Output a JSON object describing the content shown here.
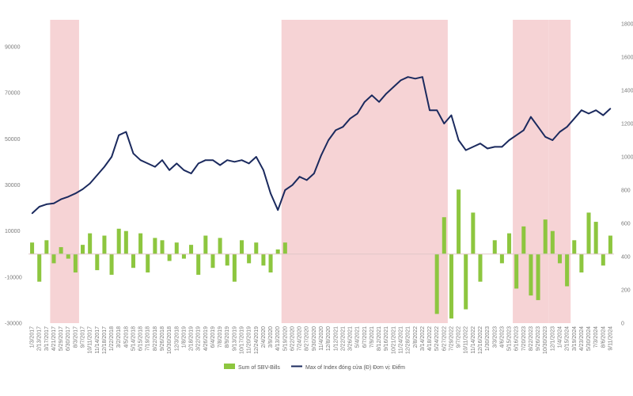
{
  "chart_data": {
    "type": "bar+line",
    "title": "",
    "xlabel": "",
    "left_axis": {
      "ylabel": "",
      "ylim": [
        -30000,
        100000
      ],
      "ticks": [
        "90000",
        "70000",
        "50000",
        "30000",
        "10000",
        "-10000",
        "-30000"
      ]
    },
    "right_axis": {
      "ylabel": "",
      "ylim": [
        0,
        1800
      ],
      "ticks": [
        "1800",
        "1600",
        "1400",
        "1200",
        "1000",
        "800",
        "600",
        "400",
        "200",
        "0"
      ]
    },
    "x_tick_labels": [
      "1/3/2017",
      "2/13/2017",
      "3/17/2017",
      "4/21/2017",
      "5/29/2017",
      "6/30/2017",
      "8/3/2017",
      "9/7/2017",
      "10/11/2017",
      "11/14/2017",
      "12/18/2017",
      "1/22/2018",
      "3/2/2018",
      "4/5/2018",
      "5/14/2018",
      "6/15/2018",
      "7/19/2018",
      "8/22/2018",
      "9/26/2018",
      "10/30/2018",
      "12/3/2018",
      "1/8/2019",
      "2/18/2019",
      "3/22/2019",
      "4/26/2019",
      "6/4/2019",
      "7/8/2019",
      "8/9/2019",
      "9/13/2019",
      "10/17/2019",
      "11/20/2019",
      "12/24/2019",
      "2/4/2020",
      "3/9/2020",
      "4/13/2020",
      "5/19/2020",
      "6/22/2020",
      "7/24/2020",
      "8/27/2020",
      "9/30/2020",
      "11/4/2020",
      "12/8/2020",
      "1/12/2021",
      "2/22/2021",
      "3/26/2021",
      "5/4/2021",
      "6/7/2021",
      "7/9/2021",
      "8/12/2021",
      "9/16/2021",
      "10/21/2021",
      "11/24/2021",
      "12/28/2021",
      "2/8/2022",
      "3/14/2022",
      "4/18/2022",
      "5/24/2022",
      "6/27/2022",
      "7/29/2022",
      "9/7/2022",
      "10/11/2022",
      "11/14/2022",
      "12/16/2022",
      "1/30/2023",
      "3/3/2023",
      "4/6/2023",
      "5/15/2023",
      "6/16/2023",
      "7/20/2023",
      "8/22/2023",
      "9/26/2023",
      "10/30/2023",
      "12/1/2023",
      "1/4/2024",
      "2/15/2024",
      "3/19/2024",
      "4/23/2024",
      "5/30/2024",
      "7/3/2024",
      "8/6/2024",
      "9/11/2024"
    ],
    "shaded_periods": [
      {
        "start": "4/21/2017",
        "end": "8/3/2017"
      },
      {
        "start": "5/19/2020",
        "end": "6/27/2022"
      },
      {
        "start": "6/16/2023",
        "end": "10/30/2023"
      },
      {
        "start": "12/1/2023",
        "end": "2/15/2024"
      }
    ],
    "series": [
      {
        "name": "Sum of SBV-Bills",
        "type": "bar",
        "axis": "left",
        "color": "#8dc63f",
        "x": [
          "1/3/2017",
          "2/13/2017",
          "3/17/2017",
          "4/21/2017",
          "5/29/2017",
          "6/30/2017",
          "8/3/2017",
          "9/7/2017",
          "10/11/2017",
          "11/14/2017",
          "12/18/2017",
          "1/22/2018",
          "3/2/2018",
          "4/5/2018",
          "5/14/2018",
          "6/15/2018",
          "7/19/2018",
          "8/22/2018",
          "9/26/2018",
          "10/30/2018",
          "12/3/2018",
          "1/8/2019",
          "2/18/2019",
          "3/22/2019",
          "4/26/2019",
          "6/4/2019",
          "7/8/2019",
          "8/9/2019",
          "9/13/2019",
          "10/17/2019",
          "11/20/2019",
          "12/24/2019",
          "2/4/2020",
          "3/9/2020",
          "4/13/2020",
          "5/19/2020",
          "6/22/2020",
          "7/24/2020",
          "8/27/2020",
          "9/30/2020",
          "11/4/2020",
          "12/8/2020",
          "1/12/2021",
          "2/22/2021",
          "3/26/2021",
          "5/4/2021",
          "6/7/2021",
          "7/9/2021",
          "8/12/2021",
          "9/16/2021",
          "10/21/2021",
          "11/24/2021",
          "12/28/2021",
          "2/8/2022",
          "3/14/2022",
          "4/18/2022",
          "5/24/2022",
          "6/27/2022",
          "7/29/2022",
          "9/7/2022",
          "10/11/2022",
          "11/14/2022",
          "12/16/2022",
          "1/30/2023",
          "3/3/2023",
          "4/6/2023",
          "5/15/2023",
          "6/16/2023",
          "7/20/2023",
          "8/22/2023",
          "9/26/2023",
          "10/30/2023",
          "12/1/2023",
          "1/4/2024",
          "2/15/2024",
          "3/19/2024",
          "4/23/2024",
          "5/30/2024",
          "7/3/2024",
          "8/6/2024",
          "9/11/2024"
        ],
        "values": [
          5000,
          -12000,
          6000,
          -4000,
          3000,
          -2000,
          -8000,
          4000,
          9000,
          -7000,
          8000,
          -9000,
          11000,
          10000,
          -6000,
          9000,
          -8000,
          7000,
          6000,
          -3000,
          5000,
          -2000,
          4000,
          -9000,
          8000,
          -6000,
          7000,
          -5000,
          -12000,
          6000,
          -4000,
          5000,
          -5000,
          -8000,
          2000,
          5000,
          0,
          0,
          0,
          0,
          0,
          0,
          0,
          0,
          0,
          0,
          0,
          0,
          0,
          0,
          0,
          0,
          0,
          0,
          0,
          0,
          -26000,
          16000,
          -28000,
          28000,
          -24000,
          18000,
          -12000,
          0,
          6000,
          -4000,
          9000,
          -15000,
          12000,
          -18000,
          -20000,
          15000,
          10000,
          -4000,
          -14000,
          6000,
          -8000,
          18000,
          14000,
          -5000,
          8000
        ]
      },
      {
        "name": "Max of Index đóng cửa (Đ) Đơn vị: Điểm",
        "type": "line",
        "axis": "right",
        "color": "#1b2a5e",
        "x": [
          "1/3/2017",
          "2/13/2017",
          "3/17/2017",
          "4/21/2017",
          "5/29/2017",
          "6/30/2017",
          "8/3/2017",
          "9/7/2017",
          "10/11/2017",
          "11/14/2017",
          "12/18/2017",
          "1/22/2018",
          "3/2/2018",
          "4/5/2018",
          "5/14/2018",
          "6/15/2018",
          "7/19/2018",
          "8/22/2018",
          "9/26/2018",
          "10/30/2018",
          "12/3/2018",
          "1/8/2019",
          "2/18/2019",
          "3/22/2019",
          "4/26/2019",
          "6/4/2019",
          "7/8/2019",
          "8/9/2019",
          "9/13/2019",
          "10/17/2019",
          "11/20/2019",
          "12/24/2019",
          "2/4/2020",
          "3/9/2020",
          "4/13/2020",
          "5/19/2020",
          "6/22/2020",
          "7/24/2020",
          "8/27/2020",
          "9/30/2020",
          "11/4/2020",
          "12/8/2020",
          "1/12/2021",
          "2/22/2021",
          "3/26/2021",
          "5/4/2021",
          "6/7/2021",
          "7/9/2021",
          "8/12/2021",
          "9/16/2021",
          "10/21/2021",
          "11/24/2021",
          "12/28/2021",
          "2/8/2022",
          "3/14/2022",
          "4/18/2022",
          "5/24/2022",
          "6/27/2022",
          "7/29/2022",
          "9/7/2022",
          "10/11/2022",
          "11/14/2022",
          "12/16/2022",
          "1/30/2023",
          "3/3/2023",
          "4/6/2023",
          "5/15/2023",
          "6/16/2023",
          "7/20/2023",
          "8/22/2023",
          "9/26/2023",
          "10/30/2023",
          "12/1/2023",
          "1/4/2024",
          "2/15/2024",
          "3/19/2024",
          "4/23/2024",
          "5/30/2024",
          "7/3/2024",
          "8/6/2024",
          "9/11/2024"
        ],
        "values": [
          660,
          700,
          715,
          720,
          745,
          760,
          780,
          805,
          840,
          890,
          940,
          1000,
          1130,
          1150,
          1020,
          980,
          960,
          940,
          980,
          920,
          960,
          920,
          900,
          960,
          980,
          980,
          950,
          980,
          970,
          980,
          960,
          1000,
          920,
          780,
          680,
          800,
          830,
          880,
          860,
          900,
          1010,
          1100,
          1160,
          1180,
          1230,
          1260,
          1330,
          1370,
          1330,
          1380,
          1420,
          1460,
          1480,
          1470,
          1480,
          1280,
          1280,
          1200,
          1250,
          1100,
          1040,
          1060,
          1080,
          1050,
          1060,
          1060,
          1100,
          1130,
          1160,
          1240,
          1180,
          1120,
          1100,
          1150,
          1180,
          1230,
          1280,
          1260,
          1280,
          1250,
          1290
        ]
      }
    ],
    "legend": {
      "placement": "bottom-center"
    }
  }
}
